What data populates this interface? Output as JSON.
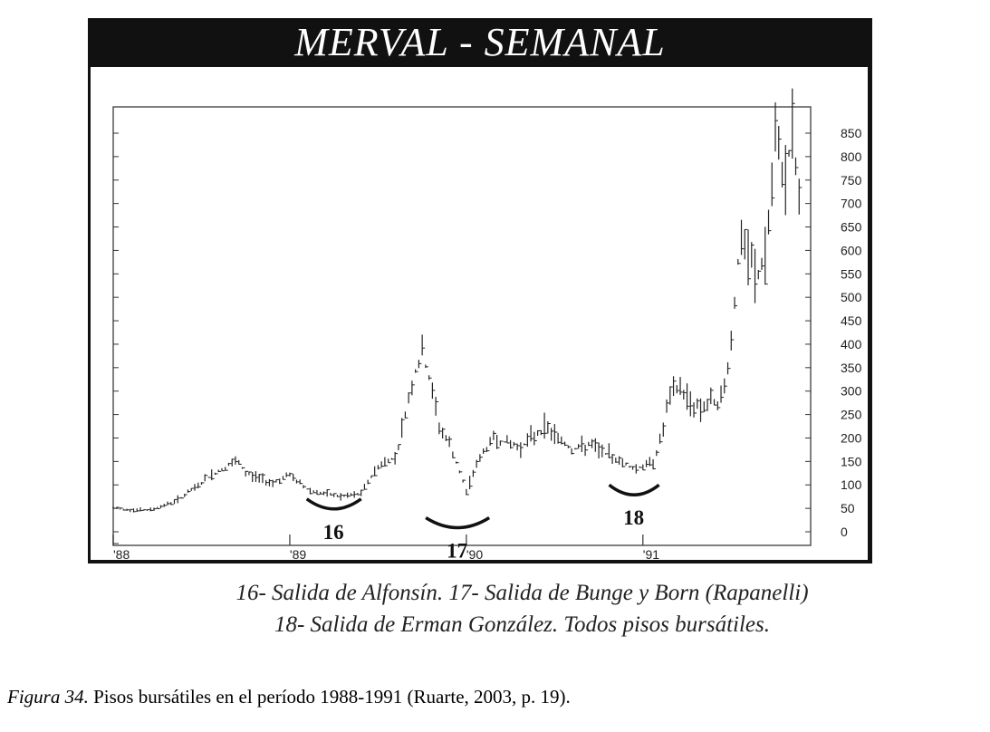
{
  "chart_data": {
    "type": "bar",
    "style": "ohlc-weekly",
    "title": "MERVAL - SEMANAL",
    "y_ticks": [
      "850",
      "800",
      "750",
      "700",
      "650",
      "600",
      "550",
      "500",
      "450",
      "400",
      "350",
      "300",
      "250",
      "200",
      "150",
      "100",
      "50",
      "0"
    ],
    "ylim": [
      0,
      900
    ],
    "x_ticks": [
      "'88",
      "'89",
      "'90",
      "'91"
    ],
    "x": [
      1988.0,
      1988.2,
      1988.35,
      1988.45,
      1988.55,
      1988.7,
      1988.75,
      1988.9,
      1989.0,
      1989.1,
      1989.2,
      1989.3,
      1989.4,
      1989.5,
      1989.6,
      1989.7,
      1989.75,
      1989.8,
      1989.85,
      1989.9,
      1990.0,
      1990.05,
      1990.15,
      1990.3,
      1990.45,
      1990.55,
      1990.6,
      1990.7,
      1990.85,
      1990.95,
      1991.05,
      1991.1,
      1991.15,
      1991.2,
      1991.3,
      1991.45,
      1991.5,
      1991.55,
      1991.65,
      1991.7,
      1991.75,
      1991.8,
      1991.85,
      1991.9
    ],
    "values": [
      50,
      45,
      65,
      90,
      120,
      150,
      125,
      105,
      120,
      90,
      80,
      75,
      80,
      140,
      160,
      330,
      380,
      310,
      220,
      190,
      85,
      140,
      200,
      180,
      225,
      190,
      175,
      185,
      155,
      135,
      145,
      195,
      285,
      310,
      265,
      280,
      410,
      620,
      540,
      600,
      820,
      760,
      850,
      620
    ],
    "grid": false,
    "legend": "none",
    "annotations": [
      {
        "label": "16",
        "x": 1989.25
      },
      {
        "label": "17",
        "x": 1989.95
      },
      {
        "label": "18",
        "x": 1990.95
      }
    ]
  },
  "caption": {
    "line1": "16- Salida de Alfonsín.  17- Salida de Bunge y Born (Rapanelli)",
    "line2": "18- Salida de Erman González. Todos pisos bursátiles."
  },
  "figure_caption": {
    "label": "Figura 34.",
    "text": " Pisos bursátiles en el período 1988-1991 (Ruarte, 2003, p. 19)."
  }
}
